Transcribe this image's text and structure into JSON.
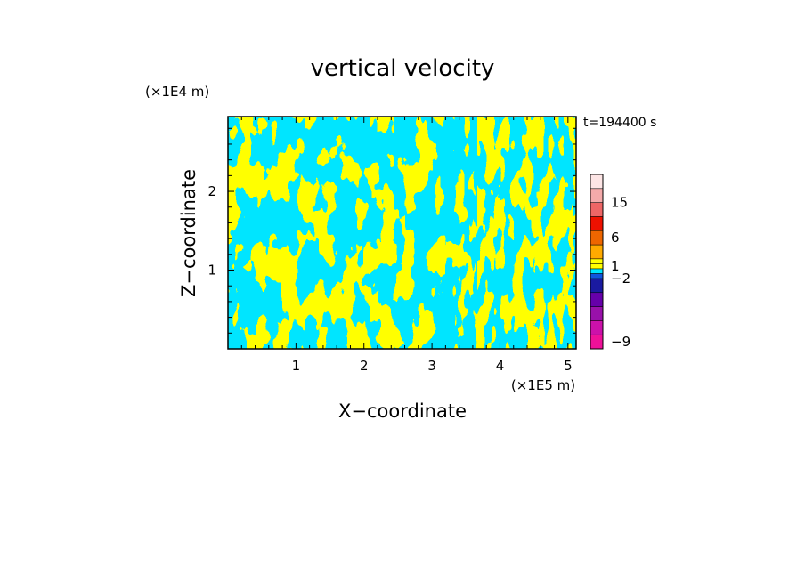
{
  "chart_data": {
    "type": "heatmap",
    "title": "vertical velocity",
    "xlabel": "X−coordinate",
    "ylabel": "Z−coordinate",
    "x_unit": "(×1E5 m)",
    "y_unit": "(×1E4 m)",
    "time_label": "t=194400 s",
    "xlim": [
      0,
      5.12
    ],
    "ylim": [
      0,
      2.95
    ],
    "x_ticks": [
      {
        "value": 1,
        "label": "1"
      },
      {
        "value": 2,
        "label": "2"
      },
      {
        "value": 3,
        "label": "3"
      },
      {
        "value": 4,
        "label": "4"
      },
      {
        "value": 5,
        "label": "5"
      }
    ],
    "y_ticks": [
      {
        "value": 1,
        "label": "1"
      },
      {
        "value": 2,
        "label": "2"
      }
    ],
    "dominant_colors": [
      "#ffff00",
      "#00e5ff"
    ],
    "colorbar": {
      "levels_bottom_to_top": [
        {
          "color": "#ee1199"
        },
        {
          "color": "#cc11aa"
        },
        {
          "color": "#9911aa"
        },
        {
          "color": "#6600aa"
        },
        {
          "color": "#1a1aa0"
        },
        {
          "color": "#1155dd"
        },
        {
          "color": "#00e5ff"
        },
        {
          "color": "#ffff00"
        },
        {
          "color": "#ffff00"
        },
        {
          "color": "#ffaa00"
        },
        {
          "color": "#ee6600"
        },
        {
          "color": "#ee1100"
        },
        {
          "color": "#ee6666"
        },
        {
          "color": "#f4aaaa"
        },
        {
          "color": "#fde5e5"
        }
      ],
      "labels": [
        {
          "level": 0.5,
          "text": "−9"
        },
        {
          "level": 5.0,
          "text": "−2"
        },
        {
          "level": 7.5,
          "text": "1"
        },
        {
          "level": 10.5,
          "text": "6"
        },
        {
          "level": 13.0,
          "text": "15"
        }
      ]
    }
  }
}
